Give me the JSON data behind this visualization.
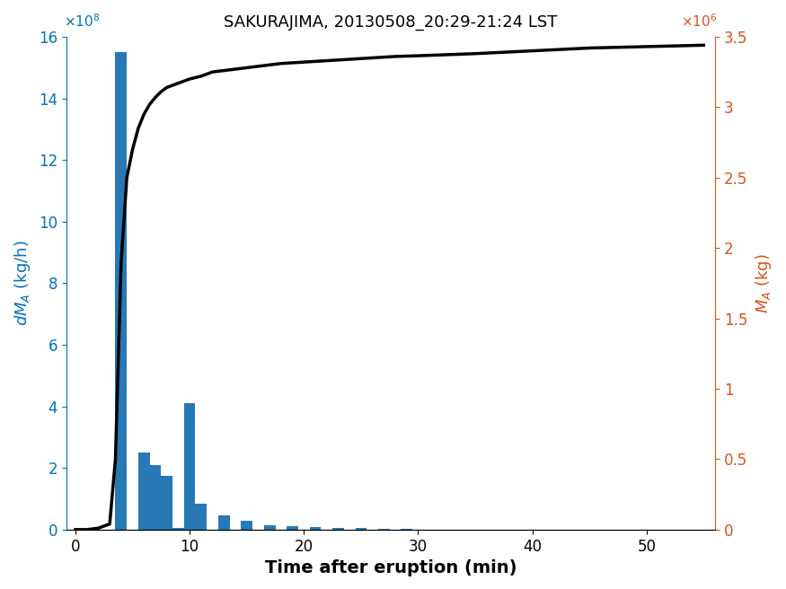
{
  "title": "SAKURAJIMA, 20130508_20:29-21:24 LST",
  "xlabel": "Time after eruption (min)",
  "ylabel_left": "dM_A (kg/h)",
  "ylabel_right": "M_A (kg)",
  "left_color": "#0072BD",
  "right_color": "#D95319",
  "bar_color": "#2878B5",
  "line_color": "#000000",
  "ylim_left": [
    0,
    1600000000.0
  ],
  "ylim_right": [
    0,
    3500000.0
  ],
  "xlim": [
    -0.8,
    56
  ],
  "bar_centers": [
    1,
    2,
    3,
    4,
    6,
    7,
    8,
    9,
    10,
    11,
    13,
    15,
    17,
    19,
    21,
    23,
    25,
    27,
    29,
    31
  ],
  "bar_heights": [
    0,
    0,
    0,
    1550000000.0,
    250000000.0,
    210000000.0,
    175000000.0,
    5000000.0,
    410000000.0,
    85000000.0,
    45000000.0,
    28000000.0,
    15000000.0,
    10000000.0,
    7000000.0,
    6000000.0,
    4000000.0,
    2500000.0,
    1500000.0,
    500000.0
  ],
  "bar_width": 1.0,
  "xticks": [
    0,
    10,
    20,
    30,
    40,
    50
  ],
  "yticks_left_vals": [
    0,
    200000000.0,
    400000000.0,
    600000000.0,
    800000000.0,
    1000000000.0,
    1200000000.0,
    1400000000.0,
    1600000000.0
  ],
  "yticks_left_labels": [
    "0",
    "2",
    "4",
    "6",
    "8",
    "10",
    "12",
    "14",
    "16"
  ],
  "yticks_right_vals": [
    0,
    500000.0,
    1000000.0,
    1500000.0,
    2000000.0,
    2500000.0,
    3000000.0,
    3500000.0
  ],
  "yticks_right_labels": [
    "0",
    "0.5",
    "1",
    "1.5",
    "2",
    "2.5",
    "3",
    "3.5"
  ],
  "cumline_x": [
    0,
    1,
    2,
    3,
    3.5,
    4,
    4.5,
    5,
    5.5,
    6,
    6.5,
    7,
    7.5,
    8,
    9,
    10,
    11,
    12,
    13,
    14,
    15,
    16,
    17,
    18,
    19,
    20,
    22,
    24,
    26,
    28,
    30,
    35,
    40,
    45,
    50,
    55
  ],
  "cumline_y": [
    0,
    0,
    10000.0,
    40000.0,
    500000.0,
    1900000.0,
    2500000.0,
    2700000.0,
    2850000.0,
    2950000.0,
    3020000.0,
    3070000.0,
    3110000.0,
    3140000.0,
    3170000.0,
    3200000.0,
    3220000.0,
    3250000.0,
    3260000.0,
    3270000.0,
    3280000.0,
    3290000.0,
    3300000.0,
    3310000.0,
    3315000.0,
    3320000.0,
    3330000.0,
    3340000.0,
    3350000.0,
    3360000.0,
    3365000.0,
    3380000.0,
    3400000.0,
    3420000.0,
    3430000.0,
    3440000.0
  ]
}
